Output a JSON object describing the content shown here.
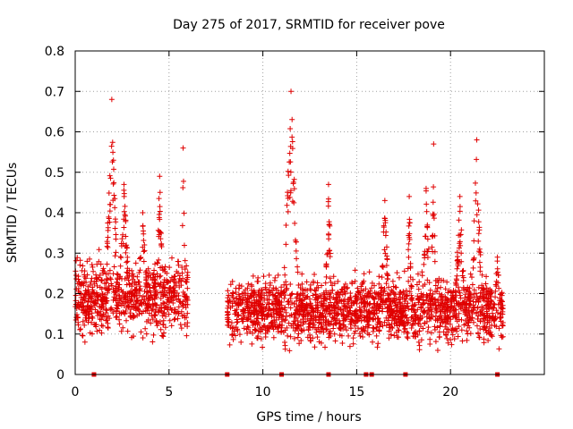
{
  "chart_data": {
    "type": "scatter",
    "title": "Day 275 of 2017, SRMTID for receiver pove",
    "xlabel": "GPS time / hours",
    "ylabel": "SRMTID / TECUs",
    "xlim": [
      0,
      25
    ],
    "ylim": [
      0,
      0.8
    ],
    "grid": true,
    "x_ticks": [
      0,
      5,
      10,
      15,
      20
    ],
    "y_ticks": [
      0,
      0.1,
      0.2,
      0.3,
      0.4,
      0.5,
      0.6,
      0.7,
      0.8
    ],
    "x_tick_labels": [
      "0",
      "5",
      "10",
      "15",
      "20"
    ],
    "y_tick_labels": [
      "0",
      "0.1",
      "0.2",
      "0.3",
      "0.4",
      "0.5",
      "0.6",
      "0.7",
      "0.8"
    ],
    "series": [
      {
        "name": "SRMTID",
        "marker": "plus",
        "color": "#e00000",
        "segments": [
          {
            "start": 0.0,
            "end": 6.0,
            "base": 0.19,
            "spread": 0.09
          },
          {
            "start": 8.1,
            "end": 22.8,
            "base": 0.16,
            "spread": 0.08
          }
        ],
        "peaks": [
          {
            "x": 1.95,
            "y": 0.68,
            "width": 0.35
          },
          {
            "x": 2.6,
            "y": 0.47,
            "width": 0.3
          },
          {
            "x": 3.6,
            "y": 0.4,
            "width": 0.25
          },
          {
            "x": 4.5,
            "y": 0.49,
            "width": 0.2
          },
          {
            "x": 5.75,
            "y": 0.56,
            "width": 0.15
          },
          {
            "x": 11.5,
            "y": 0.7,
            "width": 0.45
          },
          {
            "x": 13.5,
            "y": 0.47,
            "width": 0.2
          },
          {
            "x": 16.5,
            "y": 0.43,
            "width": 0.25
          },
          {
            "x": 17.8,
            "y": 0.44,
            "width": 0.15
          },
          {
            "x": 18.7,
            "y": 0.46,
            "width": 0.3
          },
          {
            "x": 19.1,
            "y": 0.57,
            "width": 0.15
          },
          {
            "x": 20.5,
            "y": 0.44,
            "width": 0.3
          },
          {
            "x": 21.4,
            "y": 0.58,
            "width": 0.3
          },
          {
            "x": 22.5,
            "y": 0.29,
            "width": 0.2
          }
        ],
        "zero_points": [
          1.0,
          8.1,
          11.0,
          13.5,
          15.5,
          15.8,
          17.6,
          22.5
        ]
      }
    ]
  }
}
